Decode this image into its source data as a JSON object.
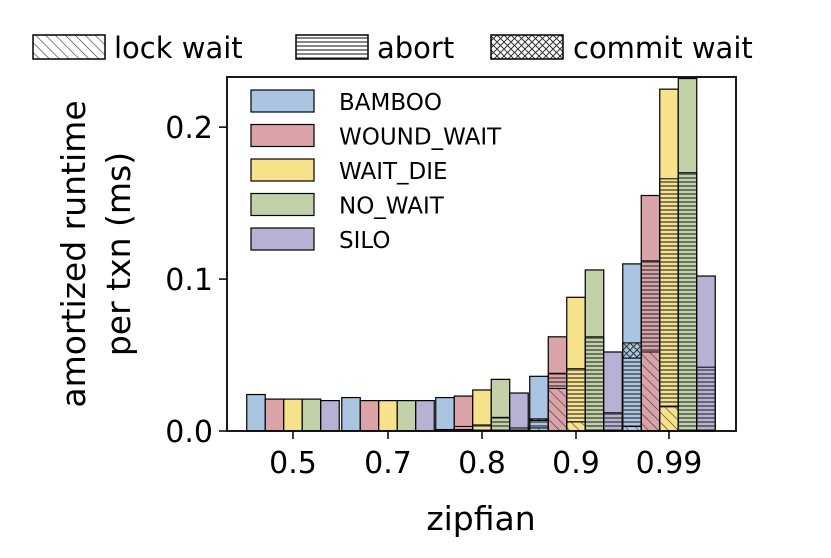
{
  "chart_data": {
    "type": "bar",
    "categories": [
      "0.5",
      "0.7",
      "0.8",
      "0.9",
      "0.99"
    ],
    "xlabel": "zipfian",
    "ylabel": "amortized runtime\nper txn (ms)",
    "ylim": [
      0,
      0.233
    ],
    "yticks": [
      "0.0",
      "0.1",
      "0.2"
    ],
    "legend_placement": "upper-left",
    "breakdown_legend_placement": "above-chart",
    "series": [
      {
        "name": "BAMBOO",
        "color": "#a9c5e2",
        "values": [
          0.024,
          0.022,
          0.022,
          0.036,
          0.11
        ],
        "lock_wait": [
          0.0,
          0.0,
          0.001,
          0.002,
          0.003
        ],
        "abort": [
          0.0,
          0.0,
          0.0,
          0.005,
          0.045
        ],
        "commit_wait": [
          0.0,
          0.0,
          0.0,
          0.001,
          0.01
        ]
      },
      {
        "name": "WOUND_WAIT",
        "color": "#d9a3a7",
        "values": [
          0.021,
          0.02,
          0.023,
          0.062,
          0.155
        ],
        "lock_wait": [
          0.0,
          0.0,
          0.001,
          0.028,
          0.052
        ],
        "abort": [
          0.0,
          0.0,
          0.002,
          0.01,
          0.06
        ],
        "commit_wait": [
          0.0,
          0.0,
          0.0,
          0.0,
          0.0
        ]
      },
      {
        "name": "WAIT_DIE",
        "color": "#f6e28a",
        "values": [
          0.021,
          0.02,
          0.027,
          0.088,
          0.225
        ],
        "lock_wait": [
          0.0,
          0.0,
          0.0,
          0.006,
          0.016
        ],
        "abort": [
          0.0,
          0.0,
          0.004,
          0.035,
          0.15
        ],
        "commit_wait": [
          0.0,
          0.0,
          0.0,
          0.0,
          0.0
        ]
      },
      {
        "name": "NO_WAIT",
        "color": "#c2d1a8",
        "values": [
          0.021,
          0.02,
          0.034,
          0.106,
          0.232
        ],
        "lock_wait": [
          0.0,
          0.0,
          0.0,
          0.0,
          0.0
        ],
        "abort": [
          0.0,
          0.0,
          0.009,
          0.062,
          0.17
        ],
        "commit_wait": [
          0.0,
          0.0,
          0.0,
          0.0,
          0.0
        ]
      },
      {
        "name": "SILO",
        "color": "#b7b1d3",
        "values": [
          0.02,
          0.02,
          0.025,
          0.052,
          0.102
        ],
        "lock_wait": [
          0.0,
          0.0,
          0.0,
          0.0,
          0.0
        ],
        "abort": [
          0.0,
          0.0,
          0.002,
          0.012,
          0.042
        ],
        "commit_wait": [
          0.0,
          0.0,
          0.0,
          0.0,
          0.0
        ]
      }
    ],
    "breakdown_legend": [
      "lock wait",
      "abort",
      "commit wait"
    ]
  }
}
